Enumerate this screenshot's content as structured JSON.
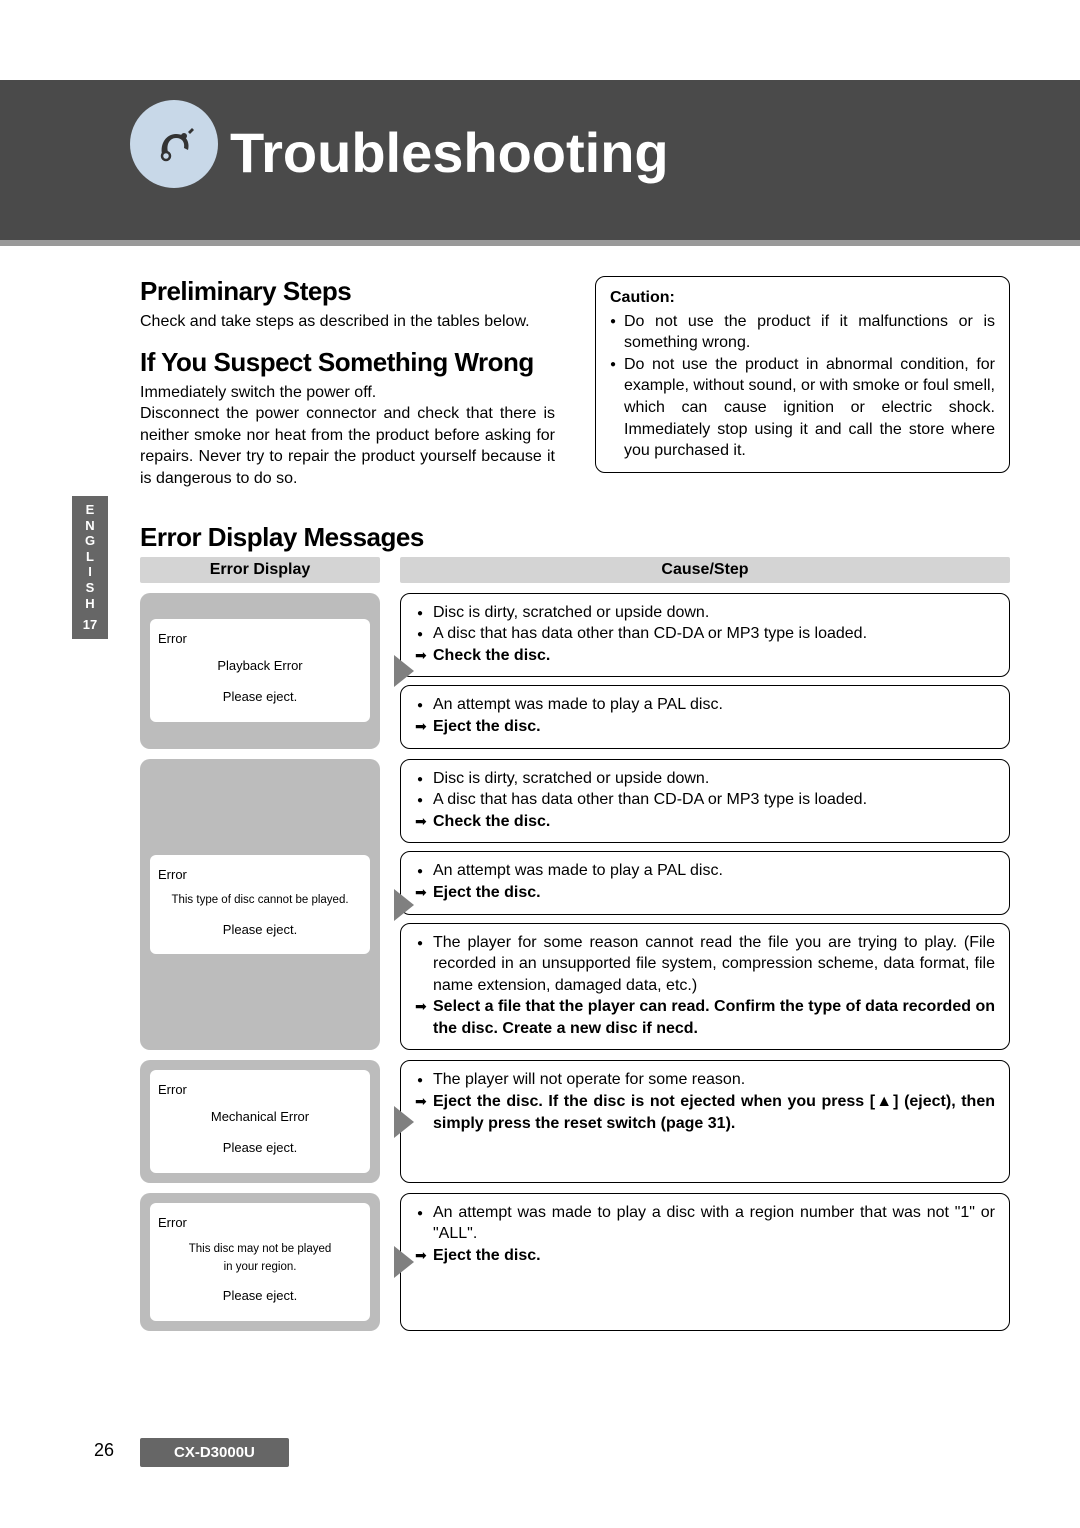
{
  "banner": {
    "title": "Troubleshooting"
  },
  "side": {
    "label": "E\nN\nG\nL\nI\nS\nH",
    "num": "17"
  },
  "sec1": {
    "title": "Preliminary Steps",
    "body": "Check and take steps as described in the tables below."
  },
  "sec2": {
    "title": "If You Suspect Something Wrong",
    "p1": "Immediately switch the power off.",
    "p2": "Disconnect the power connector and check that there is neither smoke nor heat from the product before asking for repairs. Never try to repair the product yourself because it is dangerous to do so."
  },
  "caution": {
    "title": "Caution:",
    "items": [
      "Do not use the product if it malfunctions or is something wrong.",
      "Do not use the product in abnormal condition, for example, without sound, or with smoke or foul smell, which can cause ignition or electric shock. Immediately stop using it and call the store where you purchased it."
    ]
  },
  "errorsTitle": "Error Display Messages",
  "th": {
    "left": "Error Display",
    "right": "Cause/Step"
  },
  "rows": [
    {
      "disp": {
        "top": "Error",
        "mid": "Playback Error",
        "bot": "Please eject.",
        "midSmall": false
      },
      "causes": [
        {
          "bullets": [
            "Disc is dirty, scratched or upside down.",
            "A disc that has data other than CD-DA or MP3 type is loaded."
          ],
          "action": "Check the disc."
        },
        {
          "bullets": [
            "An attempt was made to play a PAL disc."
          ],
          "action": "Eject the disc."
        }
      ]
    },
    {
      "disp": {
        "top": "Error",
        "mid": "This type of disc cannot be played.",
        "bot": "Please eject.",
        "midSmall": true
      },
      "causes": [
        {
          "bullets": [
            "Disc is dirty, scratched or upside down.",
            "A disc that has data other than CD-DA or MP3 type is loaded."
          ],
          "action": "Check the disc."
        },
        {
          "bullets": [
            "An attempt was made to play a PAL disc."
          ],
          "action": "Eject the disc."
        },
        {
          "bullets": [
            "The player for some reason cannot read the file you are trying to play. (File recorded in an unsupported file system, compression scheme, data format, file name extension, damaged data, etc.)"
          ],
          "action": "Select a file that the player can read. Confirm the type of data recorded on the disc. Create a new disc if necd."
        }
      ]
    },
    {
      "disp": {
        "top": "Error",
        "mid": "Mechanical Error",
        "bot": "Please eject.",
        "midSmall": false
      },
      "causes": [
        {
          "bullets": [
            "The player will not operate for some reason."
          ],
          "action": "Eject the disc. If the disc is not ejected when you press [▲] (eject), then simply press the reset switch (page 31)."
        }
      ]
    },
    {
      "disp": {
        "top": "Error",
        "mid": "This disc may not be played\nin your region.",
        "bot": "Please eject.",
        "midSmall": true
      },
      "causes": [
        {
          "bullets": [
            "An attempt was made to play a disc with a region number that was not \"1\" or \"ALL\"."
          ],
          "action": "Eject the disc."
        }
      ]
    }
  ],
  "footer": {
    "page": "26",
    "model": "CX-D3000U"
  }
}
